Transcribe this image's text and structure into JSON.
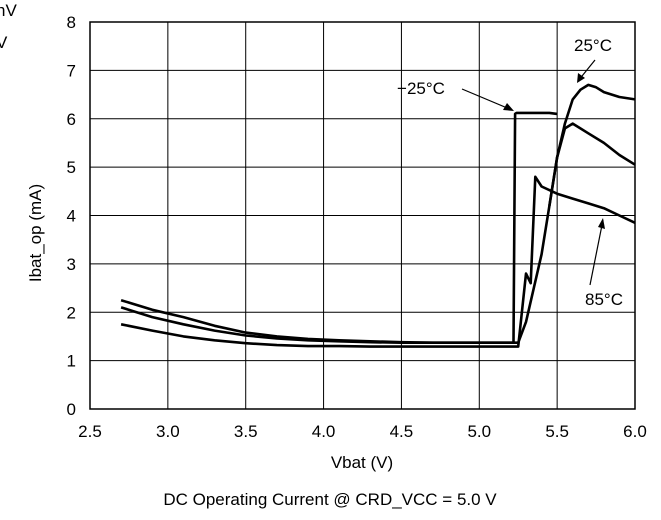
{
  "chart_data": {
    "type": "line",
    "title": "",
    "caption": "DC Operating Current @ CRD_VCC = 5.0 V",
    "xlabel": "Vbat (V)",
    "ylabel": "Ibat_op (mA)",
    "xlim": [
      2.5,
      6.0
    ],
    "ylim": [
      0,
      8
    ],
    "xticks": [
      "2.5",
      "3.0",
      "3.5",
      "4.0",
      "4.5",
      "5.0",
      "5.5",
      "6.0"
    ],
    "yticks": [
      "0",
      "1",
      "2",
      "3",
      "4",
      "5",
      "6",
      "7",
      "8"
    ],
    "grid": true,
    "legend": "none",
    "edge_fragments": [
      "nV",
      "V"
    ],
    "series": [
      {
        "name": "−25°C",
        "x": [
          2.7,
          2.9,
          3.1,
          3.3,
          3.5,
          3.7,
          3.9,
          4.1,
          4.3,
          4.5,
          4.7,
          4.9,
          5.1,
          5.22,
          5.23,
          5.24,
          5.3,
          5.4,
          5.45,
          5.5
        ],
        "y": [
          2.1,
          1.9,
          1.75,
          1.62,
          1.52,
          1.46,
          1.42,
          1.4,
          1.38,
          1.37,
          1.37,
          1.37,
          1.37,
          1.37,
          6.1,
          6.12,
          6.12,
          6.12,
          6.12,
          6.1
        ]
      },
      {
        "name": "25°C",
        "x": [
          2.7,
          2.9,
          3.1,
          3.3,
          3.5,
          3.7,
          3.9,
          4.1,
          4.3,
          4.5,
          4.7,
          4.9,
          5.1,
          5.25,
          5.3,
          5.35,
          5.4,
          5.45,
          5.5,
          5.55,
          5.6,
          5.65,
          5.7,
          5.75,
          5.8,
          5.9,
          6.0
        ],
        "y": [
          2.25,
          2.05,
          1.9,
          1.72,
          1.58,
          1.5,
          1.45,
          1.42,
          1.4,
          1.38,
          1.37,
          1.37,
          1.37,
          1.37,
          1.8,
          2.5,
          3.2,
          4.2,
          5.2,
          5.9,
          6.4,
          6.6,
          6.7,
          6.65,
          6.55,
          6.45,
          6.4
        ]
      },
      {
        "name": "85°C",
        "x": [
          2.7,
          2.9,
          3.1,
          3.3,
          3.5,
          3.7,
          3.9,
          4.1,
          4.3,
          4.5,
          4.7,
          4.9,
          5.1,
          5.25,
          5.3,
          5.33,
          5.36,
          5.4,
          5.5,
          5.6,
          5.7,
          5.8,
          5.9,
          6.0
        ],
        "y": [
          1.75,
          1.62,
          1.5,
          1.42,
          1.36,
          1.32,
          1.3,
          1.3,
          1.29,
          1.29,
          1.29,
          1.29,
          1.29,
          1.29,
          2.8,
          2.6,
          4.8,
          4.6,
          4.45,
          4.35,
          4.25,
          4.15,
          4.0,
          3.85
        ]
      },
      {
        "name": "",
        "x": [
          5.45,
          5.5,
          5.55,
          5.6,
          5.7,
          5.8,
          5.9,
          6.0
        ],
        "y": [
          4.2,
          5.2,
          5.8,
          5.9,
          5.7,
          5.5,
          5.25,
          5.05
        ]
      }
    ],
    "annotations": [
      {
        "text": "−25°C",
        "target": [
          5.22,
          6.12
        ]
      },
      {
        "text": "25°C",
        "target": [
          5.62,
          6.65
        ]
      },
      {
        "text": "85°C",
        "target": [
          5.8,
          4.15
        ]
      }
    ]
  }
}
